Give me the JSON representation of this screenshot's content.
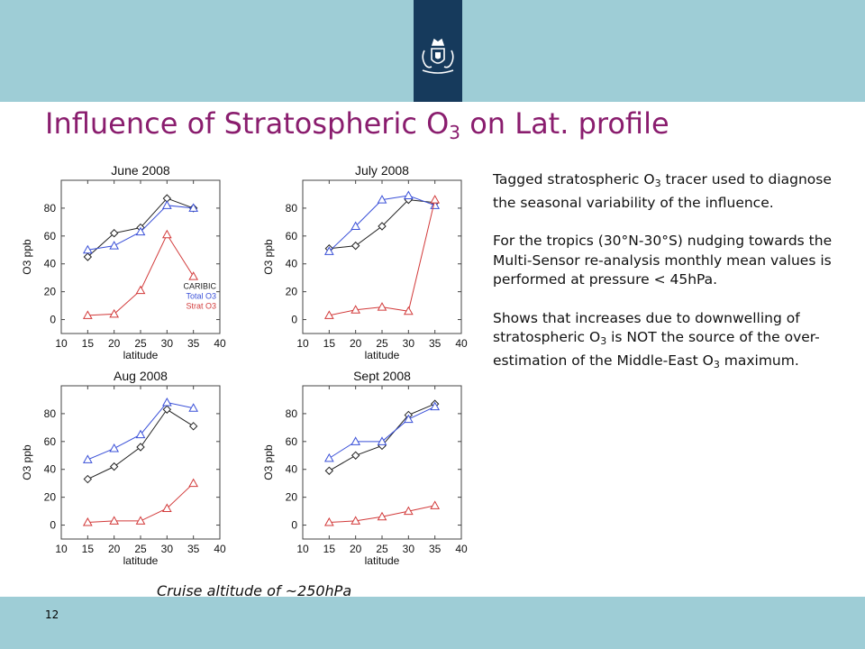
{
  "slide": {
    "title_prefix": "Influence of Stratospheric O",
    "title_sub": "3",
    "title_suffix": " on Lat. profile",
    "page_number": "12",
    "caption": "Cruise altitude of ~250hPa",
    "colors": {
      "band": "#9ecdd6",
      "logo_box": "#163a5c",
      "title": "#8a1d6e"
    },
    "logo_icon": "royal-coat-of-arms"
  },
  "notes": {
    "p1_a": "Tagged stratospheric O",
    "p1_sub": "3",
    "p1_b": " tracer used to diagnose the seasonal variability of the influence.",
    "p2": "For the tropics (30°N-30°S) nudging towards the Multi-Sensor re-analysis monthly mean values is performed at pressure < 45hPa.",
    "p3_a": "Shows that increases due to downwelling of stratospheric O",
    "p3_sub": "3",
    "p3_b": " is NOT the source of the over-estimation of the Middle-East O",
    "p3_sub2": "3",
    "p3_c": " maximum."
  },
  "chart_data": [
    {
      "type": "line",
      "title": "June 2008",
      "xlabel": "latitude",
      "ylabel": "O3 ppb",
      "xlim": [
        10,
        40
      ],
      "ylim": [
        -10,
        100
      ],
      "xticks": [
        10,
        15,
        20,
        25,
        30,
        35,
        40
      ],
      "yticks": [
        0,
        20,
        40,
        60,
        80
      ],
      "x": [
        15,
        20,
        25,
        30,
        35
      ],
      "legend": [
        "CARIBIC",
        "Total O3",
        "Strat O3"
      ],
      "series": [
        {
          "name": "CARIBIC",
          "color": "#222222",
          "marker": "diamond",
          "values": [
            45,
            62,
            66,
            87,
            80
          ]
        },
        {
          "name": "Total O3",
          "color": "#3a50d8",
          "marker": "triangle",
          "values": [
            50,
            53,
            63,
            82,
            80
          ]
        },
        {
          "name": "Strat O3",
          "color": "#d23a3a",
          "marker": "triangle",
          "values": [
            3,
            4,
            21,
            61,
            31
          ]
        }
      ]
    },
    {
      "type": "line",
      "title": "July 2008",
      "xlabel": "latitude",
      "ylabel": "O3 ppb",
      "xlim": [
        10,
        40
      ],
      "ylim": [
        -10,
        100
      ],
      "xticks": [
        10,
        15,
        20,
        25,
        30,
        35,
        40
      ],
      "yticks": [
        0,
        20,
        40,
        60,
        80
      ],
      "x": [
        15,
        20,
        25,
        30,
        35
      ],
      "series": [
        {
          "name": "CARIBIC",
          "color": "#222222",
          "marker": "diamond",
          "values": [
            51,
            53,
            67,
            86,
            84
          ]
        },
        {
          "name": "Total O3",
          "color": "#3a50d8",
          "marker": "triangle",
          "values": [
            49,
            67,
            86,
            89,
            82
          ]
        },
        {
          "name": "Strat O3",
          "color": "#d23a3a",
          "marker": "triangle",
          "values": [
            3,
            7,
            9,
            6,
            86
          ]
        }
      ]
    },
    {
      "type": "line",
      "title": "Aug 2008",
      "xlabel": "latitude",
      "ylabel": "O3 ppb",
      "xlim": [
        10,
        40
      ],
      "ylim": [
        -10,
        100
      ],
      "xticks": [
        10,
        15,
        20,
        25,
        30,
        35,
        40
      ],
      "yticks": [
        0,
        20,
        40,
        60,
        80
      ],
      "x": [
        15,
        20,
        25,
        30,
        35
      ],
      "series": [
        {
          "name": "CARIBIC",
          "color": "#222222",
          "marker": "diamond",
          "values": [
            33,
            42,
            56,
            83,
            71
          ]
        },
        {
          "name": "Total O3",
          "color": "#3a50d8",
          "marker": "triangle",
          "values": [
            47,
            55,
            65,
            88,
            84
          ]
        },
        {
          "name": "Strat O3",
          "color": "#d23a3a",
          "marker": "triangle",
          "values": [
            2,
            3,
            3,
            12,
            30
          ]
        }
      ]
    },
    {
      "type": "line",
      "title": "Sept 2008",
      "xlabel": "latitude",
      "ylabel": "O3 ppb",
      "xlim": [
        10,
        40
      ],
      "ylim": [
        -10,
        100
      ],
      "xticks": [
        10,
        15,
        20,
        25,
        30,
        35,
        40
      ],
      "yticks": [
        0,
        20,
        40,
        60,
        80
      ],
      "x": [
        15,
        20,
        25,
        30,
        35
      ],
      "series": [
        {
          "name": "CARIBIC",
          "color": "#222222",
          "marker": "diamond",
          "values": [
            39,
            50,
            57,
            79,
            87
          ]
        },
        {
          "name": "Total O3",
          "color": "#3a50d8",
          "marker": "triangle",
          "values": [
            48,
            60,
            60,
            76,
            85
          ]
        },
        {
          "name": "Strat O3",
          "color": "#d23a3a",
          "marker": "triangle",
          "values": [
            2,
            3,
            6,
            10,
            14
          ]
        }
      ]
    }
  ]
}
